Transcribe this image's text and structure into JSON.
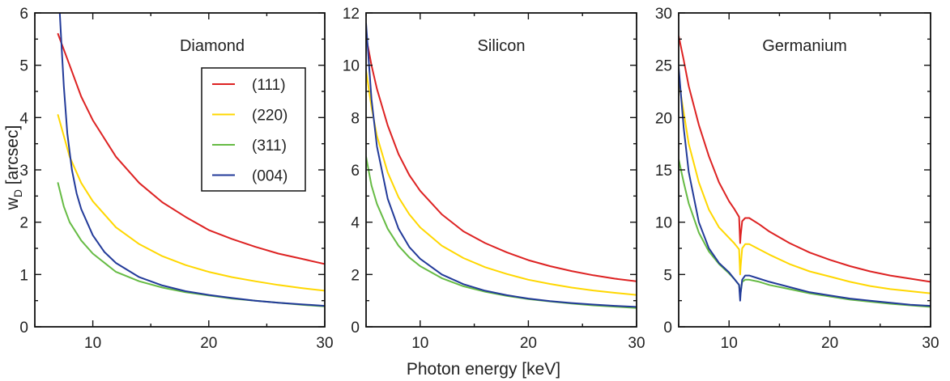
{
  "chart_data": {
    "type": "line",
    "shared": {
      "xlabel": "Photon energy [keV]",
      "ylabel_main": "w",
      "ylabel_sub": "D",
      "ylabel_unit": " [arcsec]",
      "xlim": [
        5,
        30
      ],
      "colors": {
        "(111)": "#dd2222",
        "(220)": "#ffd700",
        "(311)": "#66bb44",
        "(004)": "#223a99"
      },
      "legend": {
        "location": "upper-right of first panel",
        "entries": [
          "(111)",
          "(220)",
          "(311)",
          "(004)"
        ]
      }
    },
    "panels": [
      {
        "title": "Diamond",
        "ylim": [
          0,
          6
        ],
        "yticks": [
          "0",
          "1",
          "2",
          "3",
          "4",
          "5",
          "6"
        ],
        "xticks": [
          "10",
          "20",
          "30"
        ],
        "series": [
          {
            "name": "(111)",
            "x": [
              7,
              7.5,
              8,
              9,
              10,
              12,
              14,
              16,
              18,
              20,
              22,
              24,
              26,
              28,
              30
            ],
            "y": [
              5.6,
              5.3,
              5.0,
              4.4,
              3.95,
              3.25,
              2.75,
              2.38,
              2.1,
              1.85,
              1.68,
              1.53,
              1.4,
              1.3,
              1.2
            ]
          },
          {
            "name": "(220)",
            "x": [
              7,
              7.5,
              8,
              9,
              10,
              12,
              14,
              16,
              18,
              20,
              22,
              24,
              26,
              28,
              30
            ],
            "y": [
              4.05,
              3.65,
              3.25,
              2.75,
              2.4,
              1.9,
              1.58,
              1.35,
              1.18,
              1.05,
              0.95,
              0.87,
              0.8,
              0.74,
              0.69
            ]
          },
          {
            "name": "(311)",
            "x": [
              7,
              7.5,
              8,
              9,
              10,
              12,
              14,
              16,
              18,
              20,
              22,
              24,
              26,
              28,
              30
            ],
            "y": [
              2.75,
              2.3,
              2.0,
              1.65,
              1.4,
              1.05,
              0.87,
              0.75,
              0.66,
              0.6,
              0.54,
              0.5,
              0.46,
              0.42,
              0.39
            ]
          },
          {
            "name": "(004)",
            "x": [
              7.15,
              7.3,
              7.5,
              7.8,
              8.2,
              8.6,
              9,
              10,
              11,
              12,
              14,
              16,
              18,
              20,
              22,
              24,
              26,
              28,
              30
            ],
            "y": [
              6.0,
              5.4,
              4.6,
              3.7,
              3.0,
              2.55,
              2.25,
              1.75,
              1.43,
              1.22,
              0.95,
              0.79,
              0.68,
              0.61,
              0.55,
              0.5,
              0.46,
              0.43,
              0.4
            ]
          }
        ]
      },
      {
        "title": "Silicon",
        "ylim": [
          0,
          12
        ],
        "yticks": [
          "0",
          "2",
          "4",
          "6",
          "8",
          "10",
          "12"
        ],
        "xticks": [
          "10",
          "20",
          "30"
        ],
        "series": [
          {
            "name": "(111)",
            "x": [
              5,
              5.5,
              6,
              7,
              8,
              9,
              10,
              12,
              14,
              16,
              18,
              20,
              22,
              24,
              26,
              28,
              30
            ],
            "y": [
              11.1,
              10.0,
              9.1,
              7.7,
              6.6,
              5.8,
              5.2,
              4.3,
              3.65,
              3.2,
              2.85,
              2.55,
              2.32,
              2.13,
              1.97,
              1.84,
              1.74
            ]
          },
          {
            "name": "(220)",
            "x": [
              5,
              5.5,
              6,
              7,
              8,
              9,
              10,
              12,
              14,
              16,
              18,
              20,
              22,
              24,
              26,
              28,
              30
            ],
            "y": [
              9.8,
              8.4,
              7.3,
              5.9,
              4.95,
              4.3,
              3.8,
              3.1,
              2.63,
              2.28,
              2.02,
              1.8,
              1.64,
              1.5,
              1.39,
              1.3,
              1.22
            ]
          },
          {
            "name": "(311)",
            "x": [
              5,
              5.5,
              6,
              7,
              8,
              9,
              10,
              12,
              14,
              16,
              18,
              20,
              22,
              24,
              26,
              28,
              30
            ],
            "y": [
              6.5,
              5.4,
              4.7,
              3.75,
              3.1,
              2.65,
              2.32,
              1.86,
              1.55,
              1.34,
              1.18,
              1.06,
              0.97,
              0.89,
              0.82,
              0.77,
              0.72
            ]
          },
          {
            "name": "(004)",
            "x": [
              5,
              5.5,
              6,
              7,
              8,
              9,
              10,
              12,
              14,
              16,
              18,
              20,
              22,
              24,
              26,
              28,
              30
            ],
            "y": [
              11.6,
              8.7,
              6.9,
              4.9,
              3.75,
              3.05,
              2.6,
              2.0,
              1.63,
              1.38,
              1.21,
              1.08,
              0.98,
              0.91,
              0.85,
              0.8,
              0.76
            ]
          }
        ]
      },
      {
        "title": "Germanium",
        "ylim": [
          0,
          30
        ],
        "yticks": [
          "0",
          "5",
          "10",
          "15",
          "20",
          "25",
          "30"
        ],
        "xticks": [
          "10",
          "20",
          "30"
        ],
        "series": [
          {
            "name": "(111)",
            "x": [
              5,
              5.5,
              6,
              7,
              8,
              9,
              10,
              10.5,
              11,
              11.1,
              11.15,
              11.3,
              11.6,
              12,
              13,
              14,
              16,
              18,
              20,
              22,
              24,
              26,
              28,
              30
            ],
            "y": [
              27.8,
              25.5,
              23.0,
              19.3,
              16.3,
              13.8,
              12.0,
              11.3,
              10.5,
              8.0,
              8.7,
              10.1,
              10.4,
              10.4,
              9.8,
              9.1,
              8.0,
              7.1,
              6.4,
              5.8,
              5.3,
              4.9,
              4.6,
              4.3
            ]
          },
          {
            "name": "(220)",
            "x": [
              5,
              5.5,
              6,
              7,
              8,
              9,
              10,
              10.5,
              11,
              11.1,
              11.15,
              11.3,
              11.6,
              12,
              13,
              14,
              16,
              18,
              20,
              22,
              24,
              26,
              28,
              30
            ],
            "y": [
              23.5,
              20.5,
              17.5,
              13.8,
              11.2,
              9.5,
              8.5,
              8.0,
              7.4,
              5.0,
              5.8,
              7.5,
              7.9,
              7.9,
              7.4,
              6.9,
              6.0,
              5.3,
              4.8,
              4.3,
              3.9,
              3.6,
              3.4,
              3.2
            ]
          },
          {
            "name": "(311)",
            "x": [
              5,
              5.5,
              6,
              7,
              8,
              9,
              10,
              10.5,
              11,
              11.1,
              11.15,
              11.3,
              11.6,
              12,
              13,
              14,
              16,
              18,
              20,
              22,
              24,
              26,
              28,
              30
            ],
            "y": [
              16.0,
              13.8,
              11.8,
              9.0,
              7.2,
              6.0,
              5.1,
              4.6,
              4.0,
              3.0,
              3.3,
              4.3,
              4.5,
              4.5,
              4.3,
              4.0,
              3.6,
              3.2,
              2.9,
              2.6,
              2.4,
              2.2,
              2.05,
              1.9
            ]
          },
          {
            "name": "(004)",
            "x": [
              5,
              5.5,
              6,
              7,
              8,
              9,
              10,
              10.5,
              11,
              11.1,
              11.15,
              11.3,
              11.6,
              12,
              13,
              14,
              16,
              18,
              20,
              22,
              24,
              26,
              28,
              30
            ],
            "y": [
              24.8,
              19.0,
              14.8,
              10.0,
              7.5,
              6.1,
              5.2,
              4.6,
              4.0,
              2.5,
              3.2,
              4.5,
              4.9,
              4.9,
              4.6,
              4.3,
              3.8,
              3.3,
              3.0,
              2.7,
              2.5,
              2.3,
              2.1,
              2.0
            ]
          }
        ]
      }
    ]
  }
}
